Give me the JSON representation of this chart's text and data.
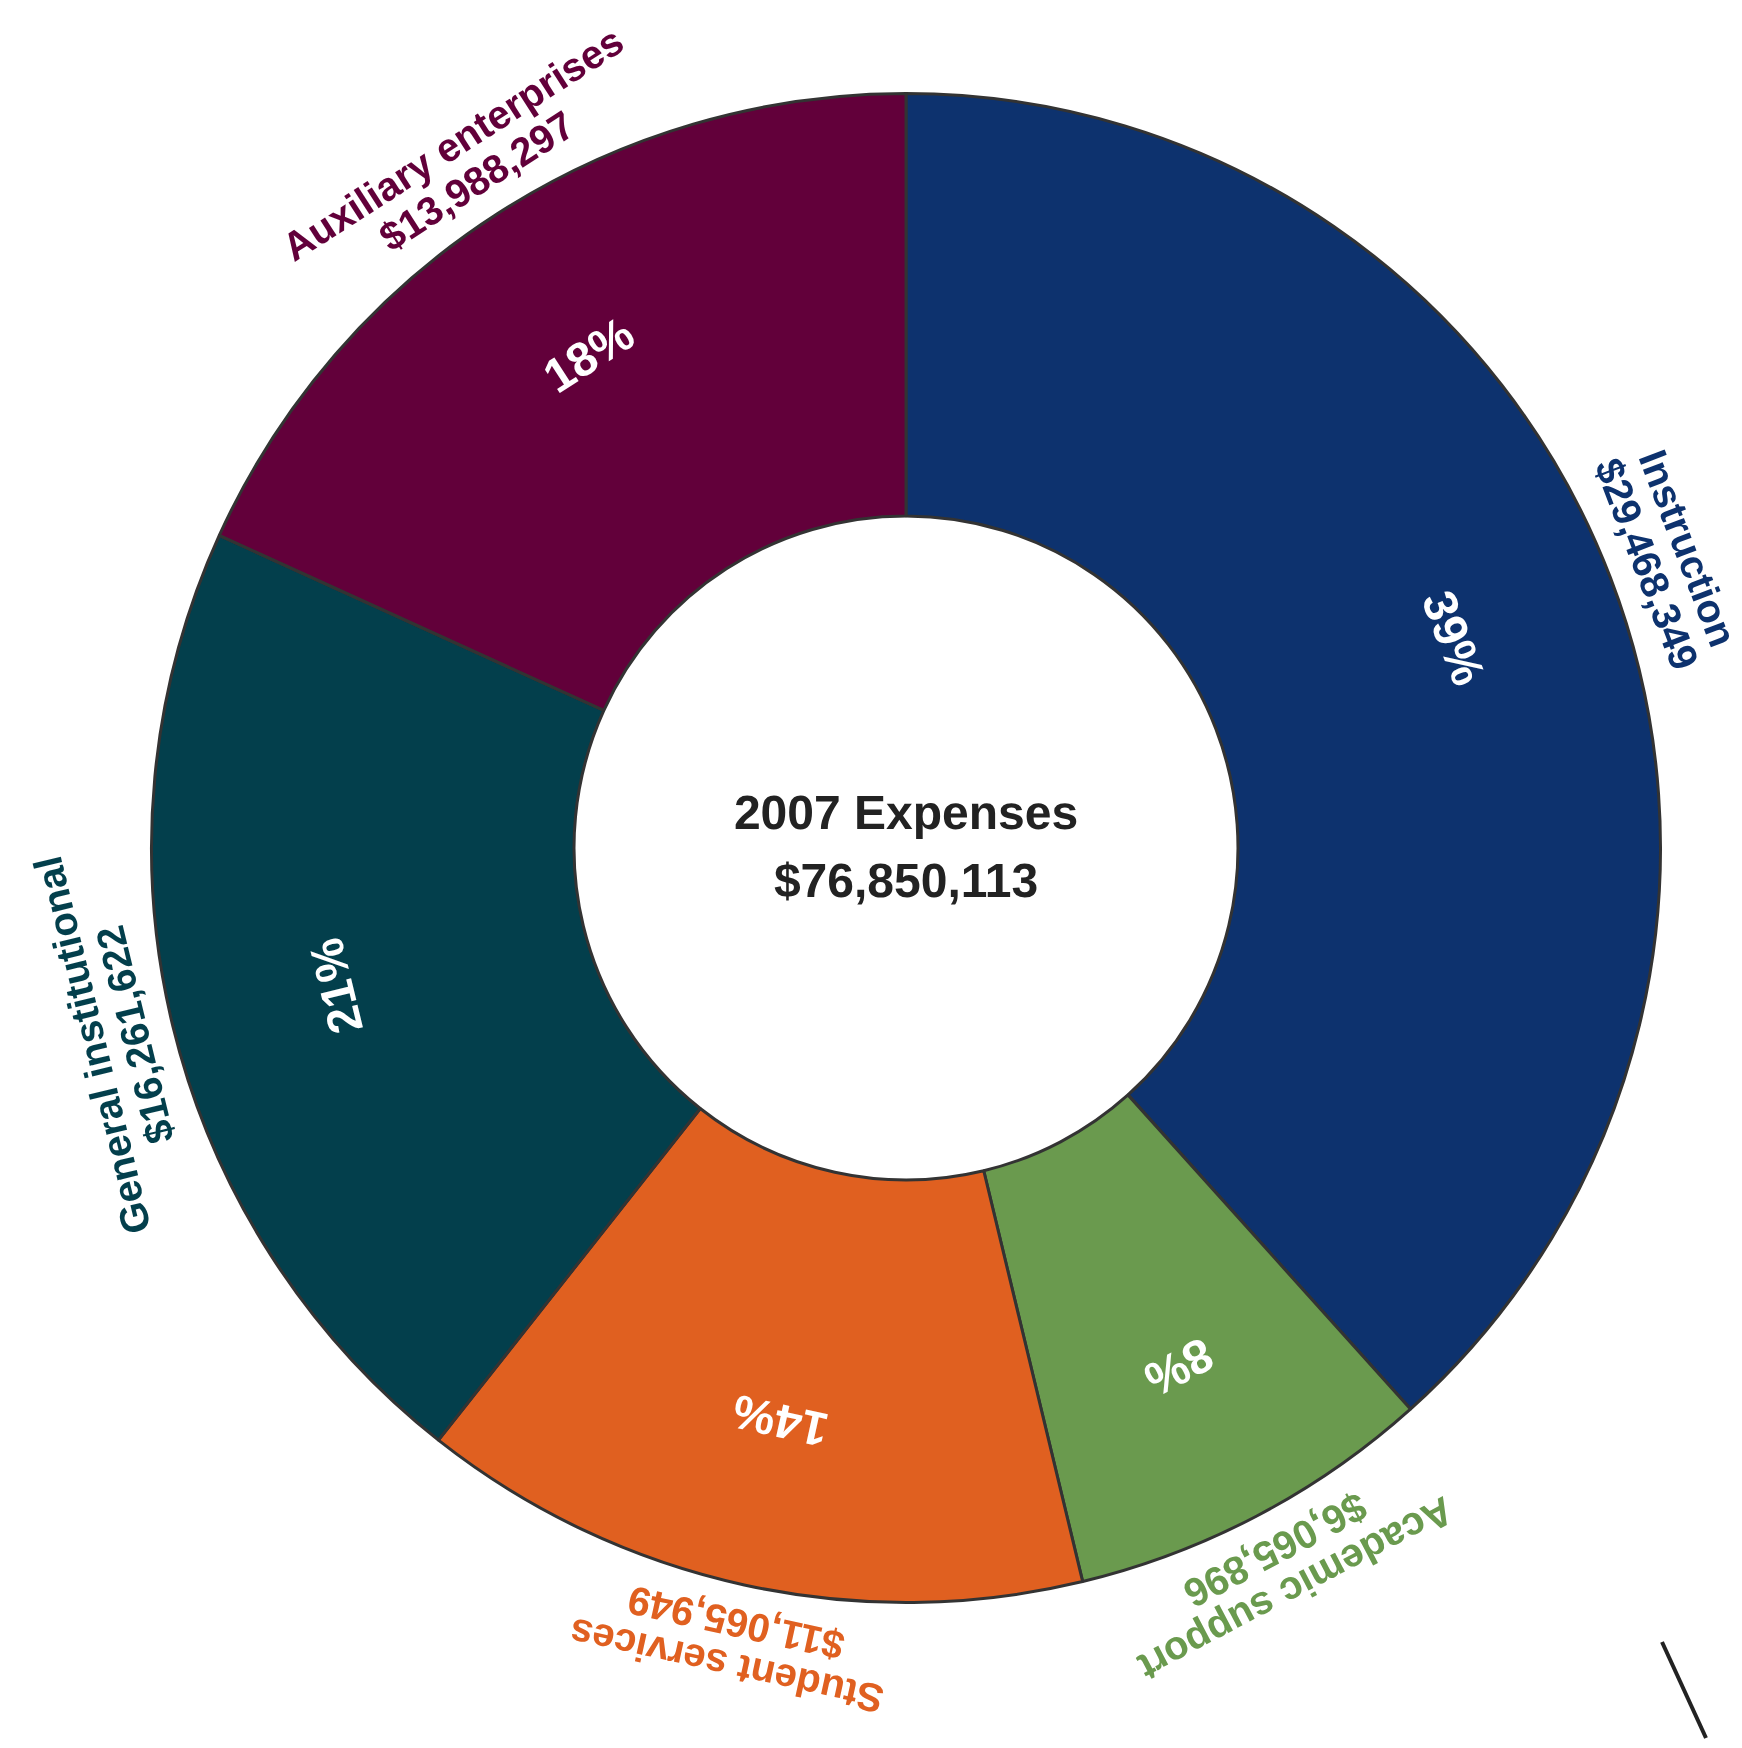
{
  "chart_data": {
    "type": "donut",
    "title": "2007 Expenses",
    "subtitle": "$76,850,113",
    "categories": [
      "Instruction",
      "Academic support",
      "Student services",
      "General institutional",
      "Auxiliary enterprises"
    ],
    "values": [
      29468349,
      6065896,
      11065949,
      16261622,
      13988297
    ],
    "colors": [
      "#0d326e",
      "#6a9a4e",
      "#e06020",
      "#033f4c",
      "#62003a"
    ],
    "value_labels": [
      "$29,468,349",
      "$6,065,896",
      "$11,065,949",
      "$16,261,622",
      "$13,988,297"
    ],
    "annotations": [
      {
        "text": "39%",
        "x": "Instruction"
      },
      {
        "text": "8%",
        "x": "Academic support"
      },
      {
        "text": "14%",
        "x": "Student services"
      },
      {
        "text": "21%",
        "x": "General institutional"
      },
      {
        "text": "18%",
        "x": "Auxiliary enterprises"
      }
    ],
    "legend": false
  }
}
